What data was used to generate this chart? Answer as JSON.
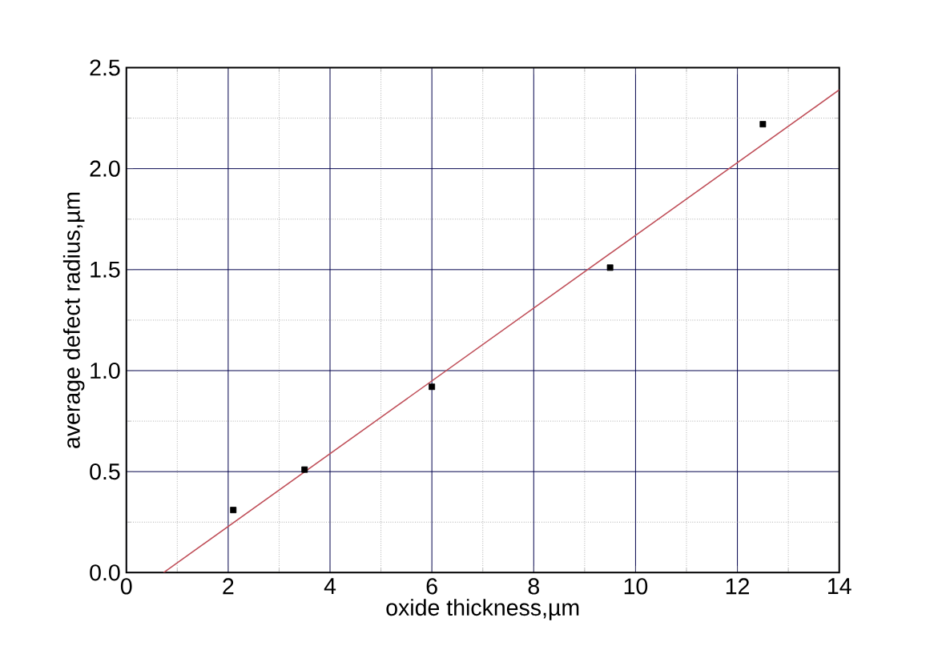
{
  "chart_data": {
    "type": "scatter",
    "xlabel": "oxide thickness,µm",
    "ylabel": "average defect radius,µm",
    "xlim": [
      0,
      14
    ],
    "ylim": [
      0,
      2.5
    ],
    "xticks": [
      0,
      2,
      4,
      6,
      8,
      10,
      12,
      14
    ],
    "yticks": [
      {
        "value": 0,
        "label": "0.0"
      },
      0.5,
      {
        "value": 1,
        "label": "1.0"
      },
      1.5,
      {
        "value": 2,
        "label": "2.0"
      },
      2.5
    ],
    "grid": true,
    "series": [
      {
        "color": "#000000",
        "marker": "square",
        "x": [
          2.1,
          3.5,
          6.0,
          9.5,
          12.5
        ],
        "values": [
          0.31,
          0.51,
          0.92,
          1.51,
          2.22
        ]
      },
      {
        "type": "line",
        "color": "#c0505a",
        "x": [
          0.73,
          14
        ],
        "values": [
          0,
          2.39
        ]
      }
    ]
  }
}
